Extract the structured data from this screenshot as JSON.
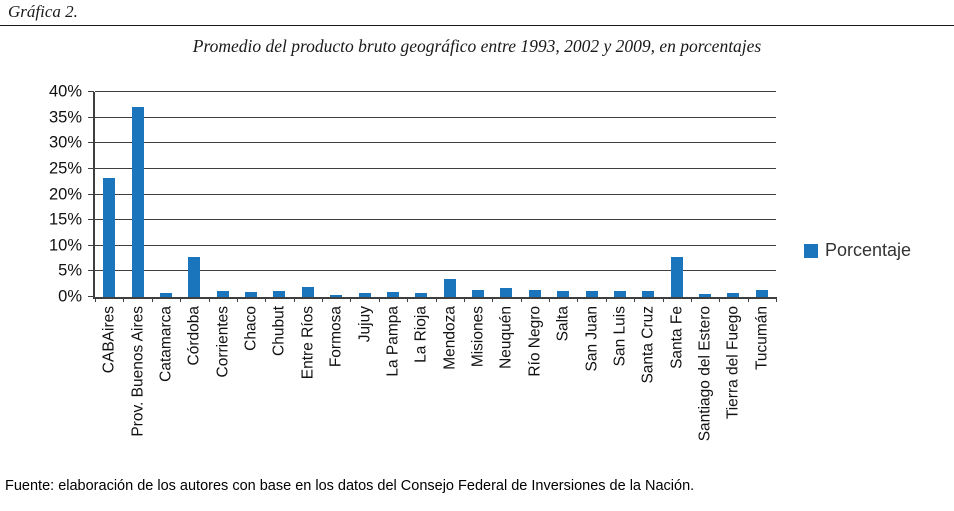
{
  "page": {
    "figure_label": "Gráfica 2.",
    "source_note": "Fuente: elaboración de los autores con base en los datos del Consejo Federal de Inversiones de la Nación."
  },
  "chart_data": {
    "type": "bar",
    "title": "Promedio del producto bruto geográfico entre 1993, 2002 y 2009, en porcentajes",
    "categories": [
      "CABAires",
      "Prov. Buenos Aires",
      "Catamarca",
      "Córdoba",
      "Corrientes",
      "Chaco",
      "Chubut",
      "Entre Ríos",
      "Formosa",
      "Jujuy",
      "La Pampa",
      "La Rioja",
      "Mendoza",
      "Misiones",
      "Neuquén",
      "Río Negro",
      "Salta",
      "San Juan",
      "San Luis",
      "Santa Cruz",
      "Santa Fe",
      "Santiago del Estero",
      "Tierra del Fuego",
      "Tucumán"
    ],
    "series": [
      {
        "name": "Porcentaje",
        "values": [
          23.3,
          37.0,
          0.8,
          7.9,
          1.2,
          0.9,
          1.1,
          1.9,
          0.4,
          0.7,
          0.9,
          0.7,
          3.6,
          1.4,
          1.7,
          1.4,
          1.1,
          1.1,
          1.2,
          1.1,
          7.9,
          0.6,
          0.8,
          1.4
        ]
      }
    ],
    "legend_label": "Porcentaje",
    "legend_position": "right",
    "xlabel": "",
    "ylabel": "",
    "ylim": [
      0,
      40
    ],
    "y_tick_step": 5,
    "y_tick_labels": [
      "0%",
      "5%",
      "10%",
      "15%",
      "20%",
      "25%",
      "30%",
      "35%",
      "40%"
    ],
    "grid": true,
    "bar_color": "#1b75bc",
    "axis_color": "#3f3f3f"
  }
}
